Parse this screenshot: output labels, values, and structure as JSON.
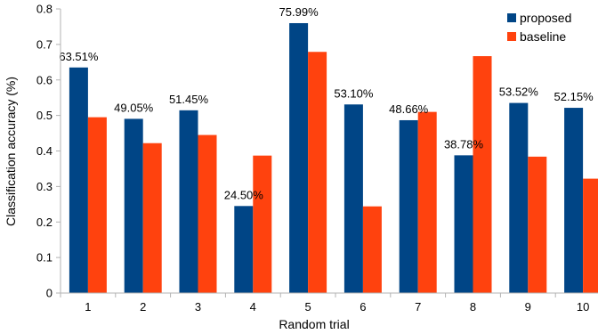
{
  "chart_data": {
    "type": "bar",
    "xlabel": "Random trial",
    "ylabel": "Classification accuracy (%)",
    "ylim": [
      0,
      0.8
    ],
    "yticks": [
      "0",
      "0.1",
      "0.2",
      "0.3",
      "0.4",
      "0.5",
      "0.6",
      "0.7",
      "0.8"
    ],
    "categories": [
      "1",
      "2",
      "3",
      "4",
      "5",
      "6",
      "7",
      "8",
      "9",
      "10"
    ],
    "series": [
      {
        "name": "proposed",
        "color": "#004586",
        "values": [
          0.6351,
          0.4905,
          0.5145,
          0.245,
          0.7599,
          0.531,
          0.4866,
          0.3878,
          0.5352,
          0.5215
        ],
        "labels": [
          "63.51%",
          "49.05%",
          "51.45%",
          "24.50%",
          "75.99%",
          "53.10%",
          "48.66%",
          "38.78%",
          "53.52%",
          "52.15%"
        ]
      },
      {
        "name": "baseline",
        "color": "#ff420e",
        "values": [
          0.495,
          0.422,
          0.445,
          0.387,
          0.679,
          0.244,
          0.51,
          0.667,
          0.384,
          0.322
        ]
      }
    ],
    "grid": false,
    "legend": "top-right"
  }
}
